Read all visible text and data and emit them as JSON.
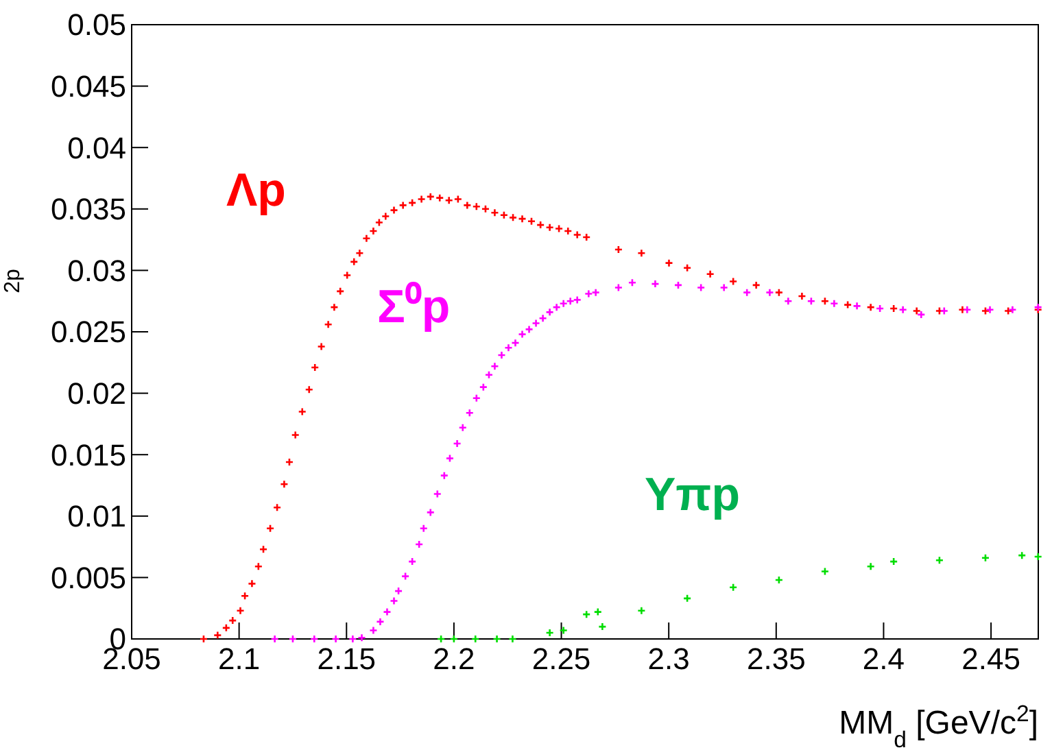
{
  "chart_data": {
    "type": "scatter",
    "xlabel": "MM$_{d}$ [GeV/c$^{2}$]",
    "ylabel": "2p",
    "xlim": [
      2.05,
      2.472
    ],
    "ylim": [
      0,
      0.05
    ],
    "xticks": [
      2.05,
      2.1,
      2.15,
      2.2,
      2.25,
      2.3,
      2.35,
      2.4,
      2.45
    ],
    "yticks": [
      0,
      0.005,
      0.01,
      0.015,
      0.02,
      0.025,
      0.03,
      0.035,
      0.04,
      0.045,
      0.05
    ],
    "marker": "cross",
    "series": [
      {
        "name": "Λp",
        "color": "#ff0000",
        "x": [
          2.0835,
          2.09,
          2.094,
          2.097,
          2.1006,
          2.1027,
          2.106,
          2.109,
          2.1113,
          2.1145,
          2.1177,
          2.121,
          2.1234,
          2.1262,
          2.1294,
          2.1326,
          2.1353,
          2.1383,
          2.1415,
          2.1443,
          2.1471,
          2.1503,
          2.1535,
          2.1561,
          2.1593,
          2.1625,
          2.1652,
          2.1682,
          2.1721,
          2.1763,
          2.1806,
          2.1849,
          2.1891,
          2.1934,
          2.1977,
          2.2019,
          2.2062,
          2.2105,
          2.2147,
          2.219,
          2.2233,
          2.2275,
          2.2318,
          2.2361,
          2.2403,
          2.2446,
          2.2489,
          2.2531,
          2.2574,
          2.2617,
          2.2766,
          2.2873,
          2.3001,
          2.3086,
          2.3193,
          2.33,
          2.3407,
          2.3513,
          2.362,
          2.3727,
          2.3833,
          2.394,
          2.4047,
          2.4154,
          2.426,
          2.4367,
          2.4474,
          2.458,
          2.4719
        ],
        "values": [
          0,
          0.0003,
          0.0009,
          0.0015,
          0.0023,
          0.0035,
          0.0045,
          0.0059,
          0.0073,
          0.009,
          0.0107,
          0.0126,
          0.0144,
          0.0166,
          0.0185,
          0.0203,
          0.0221,
          0.0238,
          0.0256,
          0.027,
          0.0283,
          0.0296,
          0.0307,
          0.0314,
          0.0326,
          0.0332,
          0.0339,
          0.0344,
          0.0349,
          0.0353,
          0.0355,
          0.0358,
          0.036,
          0.0359,
          0.0357,
          0.0358,
          0.0353,
          0.0352,
          0.035,
          0.0347,
          0.0345,
          0.0343,
          0.0342,
          0.034,
          0.0337,
          0.0335,
          0.0334,
          0.0332,
          0.0329,
          0.0327,
          0.0317,
          0.0314,
          0.0306,
          0.0302,
          0.0297,
          0.0291,
          0.0288,
          0.0282,
          0.0279,
          0.0275,
          0.0272,
          0.027,
          0.0269,
          0.0267,
          0.0267,
          0.0268,
          0.0267,
          0.0267,
          0.0268
        ]
      },
      {
        "name": "Σ⁰p",
        "color": "#ff00ff",
        "x": [
          2.1166,
          2.125,
          2.135,
          2.145,
          2.1529,
          2.1571,
          2.1625,
          2.1657,
          2.1689,
          2.1721,
          2.1742,
          2.1774,
          2.1806,
          2.1838,
          2.1859,
          2.1891,
          2.1923,
          2.1955,
          2.1981,
          2.2015,
          2.2041,
          2.2073,
          2.2105,
          2.2137,
          2.2163,
          2.219,
          2.2222,
          2.2254,
          2.2286,
          2.2318,
          2.235,
          2.2382,
          2.2414,
          2.2446,
          2.2478,
          2.251,
          2.2542,
          2.2574,
          2.2627,
          2.266,
          2.2766,
          2.283,
          2.2937,
          2.3044,
          2.315,
          2.3257,
          2.3364,
          2.347,
          2.3556,
          2.3663,
          2.377,
          2.3876,
          2.3983,
          2.409,
          2.4175,
          2.4282,
          2.4389,
          2.4495,
          2.46,
          2.4719
        ],
        "values": [
          0,
          0,
          0,
          0,
          0,
          0.0001,
          0.0007,
          0.0014,
          0.0022,
          0.0031,
          0.0039,
          0.0051,
          0.0063,
          0.0077,
          0.009,
          0.0103,
          0.0118,
          0.0133,
          0.0147,
          0.0159,
          0.0172,
          0.0184,
          0.0196,
          0.0205,
          0.0215,
          0.0222,
          0.0231,
          0.0237,
          0.0241,
          0.0248,
          0.0252,
          0.0257,
          0.0261,
          0.0266,
          0.027,
          0.0273,
          0.0275,
          0.0276,
          0.0281,
          0.0282,
          0.0286,
          0.029,
          0.0289,
          0.0288,
          0.0286,
          0.0286,
          0.0282,
          0.0282,
          0.0275,
          0.0275,
          0.0273,
          0.0271,
          0.0269,
          0.0268,
          0.0264,
          0.0267,
          0.0268,
          0.0268,
          0.0268,
          0.027
        ]
      },
      {
        "name": "Yπp",
        "color": "#00dd00",
        "x": [
          2.194,
          2.2,
          2.21,
          2.22,
          2.2273,
          2.2446,
          2.251,
          2.2617,
          2.267,
          2.2691,
          2.2873,
          2.3086,
          2.33,
          2.3513,
          2.3727,
          2.394,
          2.4047,
          2.426,
          2.4474,
          2.4644,
          2.4719
        ],
        "values": [
          0,
          0,
          0,
          0,
          0,
          0.0005,
          0.0007,
          0.002,
          0.0022,
          0.001,
          0.0023,
          0.0033,
          0.0042,
          0.0048,
          0.0055,
          0.0059,
          0.0063,
          0.0064,
          0.0066,
          0.0068,
          0.0067
        ]
      }
    ]
  }
}
